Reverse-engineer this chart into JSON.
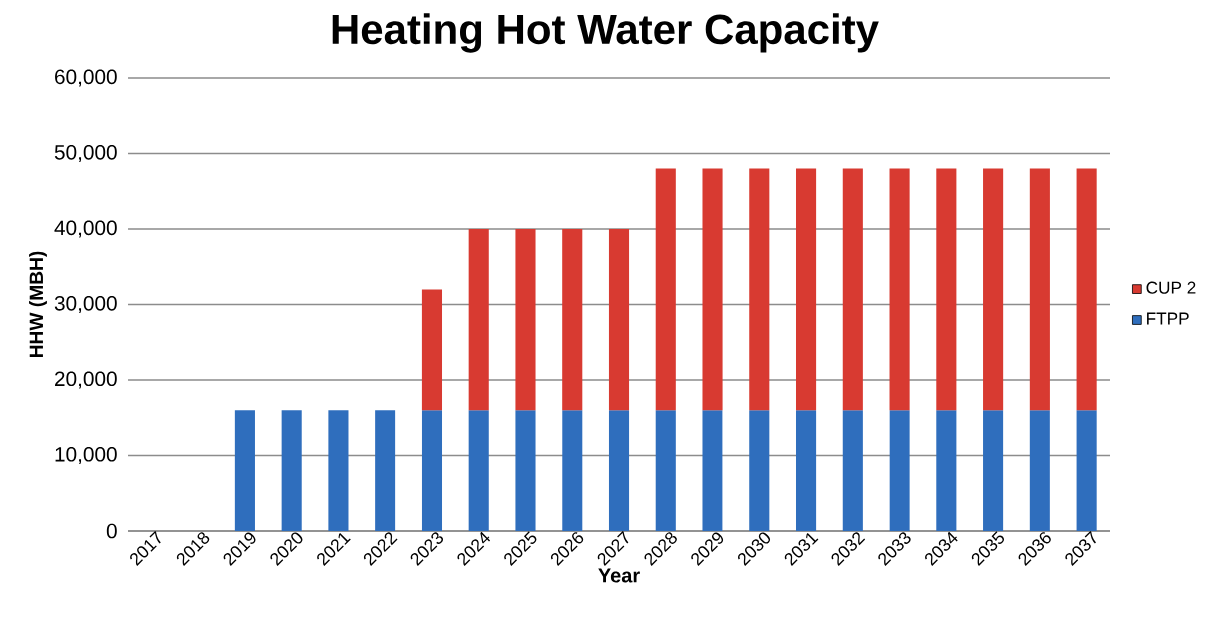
{
  "chart_data": {
    "type": "bar",
    "title": "Heating Hot Water Capacity",
    "xlabel": "Year",
    "ylabel": "HHW (MBH)",
    "categories": [
      "2017",
      "2018",
      "2019",
      "2020",
      "2021",
      "2022",
      "2023",
      "2024",
      "2025",
      "2026",
      "2027",
      "2028",
      "2029",
      "2030",
      "2031",
      "2032",
      "2033",
      "2034",
      "2035",
      "2036",
      "2037"
    ],
    "stacked": true,
    "series": [
      {
        "name": "FTPP",
        "color": "#2f6ebd",
        "values": [
          null,
          null,
          16000,
          16000,
          16000,
          16000,
          16000,
          16000,
          16000,
          16000,
          16000,
          16000,
          16000,
          16000,
          16000,
          16000,
          16000,
          16000,
          16000,
          16000,
          16000
        ]
      },
      {
        "name": "CUP 2",
        "color": "#d83a31",
        "values": [
          null,
          null,
          null,
          null,
          null,
          null,
          16000,
          24000,
          24000,
          24000,
          24000,
          32000,
          32000,
          32000,
          32000,
          32000,
          32000,
          32000,
          32000,
          32000,
          32000
        ]
      }
    ],
    "ylim": [
      0,
      60000
    ],
    "yticks": [
      0,
      {
        "value": 10000,
        "label": "10,000"
      },
      {
        "value": 20000,
        "label": "20,000"
      },
      {
        "value": 30000,
        "label": "30,000"
      },
      {
        "value": 40000,
        "label": "40,000"
      },
      {
        "value": 50000,
        "label": "50,000"
      },
      {
        "value": 60000,
        "label": "60,000"
      }
    ],
    "grid": "y",
    "legend": "right"
  }
}
